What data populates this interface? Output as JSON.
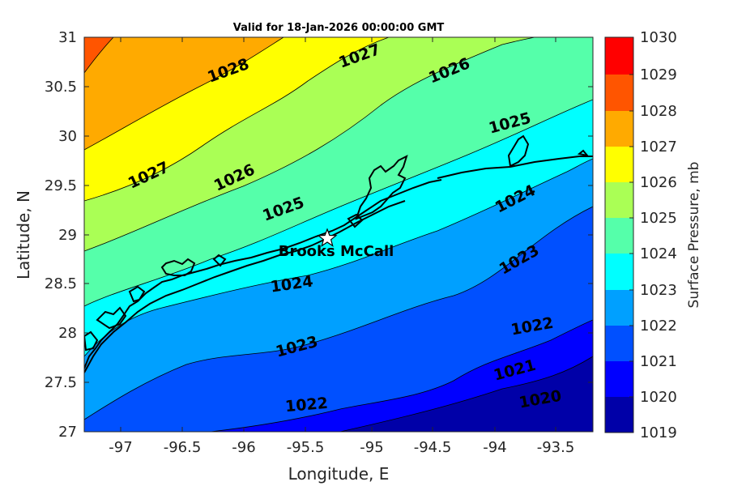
{
  "title": "Valid for 18-Jan-2026 00:00:00 GMT",
  "xlabel": "Longitude, E",
  "ylabel": "Latitude, N",
  "colorbar_label": "Surface Pressure, mb",
  "xticks": [
    "-97",
    "-96.5",
    "-96",
    "-95.5",
    "-95",
    "-94.5",
    "-94",
    "-93.5"
  ],
  "yticks": [
    "27",
    "27.5",
    "28",
    "28.5",
    "29",
    "29.5",
    "30",
    "30.5",
    "31"
  ],
  "colorbar_ticks": [
    "1019",
    "1020",
    "1021",
    "1022",
    "1023",
    "1024",
    "1025",
    "1026",
    "1027",
    "1028",
    "1029",
    "1030"
  ],
  "station": {
    "name": "Brooks McCall",
    "lon": -95.3,
    "lat": 28.95
  },
  "contour_labels": [
    {
      "text": "1028"
    },
    {
      "text": "1027"
    },
    {
      "text": "1026"
    },
    {
      "text": "1027"
    },
    {
      "text": "1026"
    },
    {
      "text": "1025"
    },
    {
      "text": "1025"
    },
    {
      "text": "1024"
    },
    {
      "text": "1024"
    },
    {
      "text": "1023"
    },
    {
      "text": "1023"
    },
    {
      "text": "1022"
    },
    {
      "text": "1022"
    },
    {
      "text": "1021"
    },
    {
      "text": "1020"
    }
  ],
  "colors": {
    "1019": "#0000a8",
    "1020": "#0000ff",
    "1021": "#0050ff",
    "1022": "#00a0ff",
    "1023": "#00ffff",
    "1024": "#55ffaa",
    "1025": "#aaff55",
    "1026": "#ffff00",
    "1027": "#ffaa00",
    "1028": "#ff5500",
    "1029": "#ff0000",
    "1030": "#a80000"
  },
  "chart_data": {
    "type": "heatmap",
    "title": "Valid for 18-Jan-2026 00:00:00 GMT",
    "xlabel": "Longitude, E",
    "ylabel": "Latitude, N",
    "xlim": [
      -97.3,
      -93.15
    ],
    "ylim": [
      27,
      31
    ],
    "colorbar": {
      "label": "Surface Pressure, mb",
      "range": [
        1019,
        1030
      ]
    },
    "contour_levels": [
      1020,
      1021,
      1022,
      1023,
      1024,
      1025,
      1026,
      1027,
      1028
    ],
    "station": {
      "name": "Brooks McCall",
      "lon": -95.3,
      "lat": 28.95
    }
  }
}
